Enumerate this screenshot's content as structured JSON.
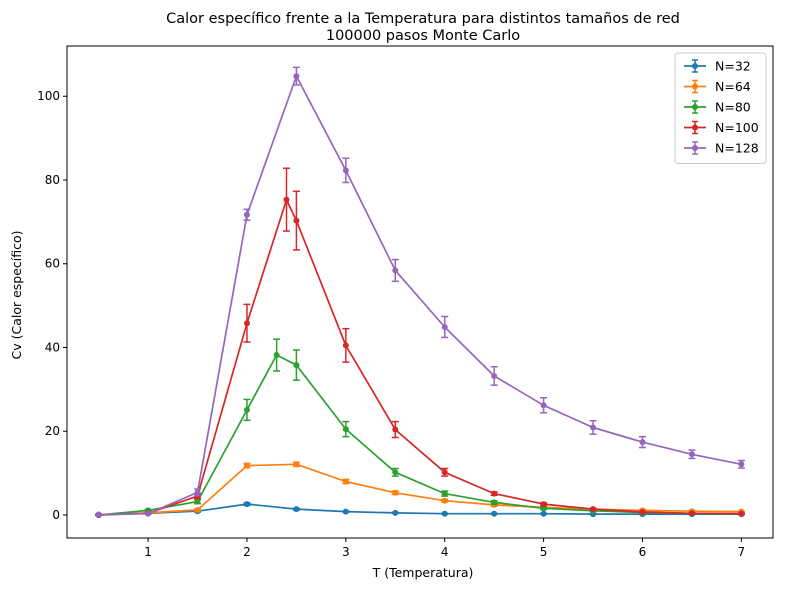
{
  "chart_data": {
    "type": "line",
    "title": "Calor específico frente a la Temperatura para distintos tamaños de red",
    "subtitle": "100000 pasos Monte Carlo",
    "xlabel": "T (Temperatura)",
    "ylabel": "Cv (Calor específico)",
    "xlim": [
      0.18,
      7.32
    ],
    "ylim": [
      -5.5,
      112
    ],
    "xticks": [
      1,
      2,
      3,
      4,
      5,
      6,
      7
    ],
    "yticks": [
      0,
      20,
      40,
      60,
      80,
      100
    ],
    "grid": false,
    "legend_position": "top-right",
    "series": [
      {
        "name": "N=32",
        "color": "#1f77b4",
        "x": [
          0.5,
          1.0,
          1.5,
          2.0,
          2.5,
          3.0,
          3.5,
          4.0,
          4.5,
          5.0,
          5.5,
          6.0,
          6.5,
          7.0
        ],
        "y": [
          0.1,
          0.4,
          0.9,
          2.6,
          1.4,
          0.8,
          0.5,
          0.3,
          0.3,
          0.3,
          0.2,
          0.2,
          0.2,
          0.2
        ],
        "err": [
          0.1,
          0.1,
          0.2,
          0.3,
          0.2,
          0.1,
          0.1,
          0.1,
          0.1,
          0.1,
          0.1,
          0.1,
          0.1,
          0.1
        ]
      },
      {
        "name": "N=64",
        "color": "#ff7f0e",
        "x": [
          0.5,
          1.0,
          1.5,
          2.0,
          2.5,
          3.0,
          3.5,
          4.0,
          4.5,
          5.0,
          5.5,
          6.0,
          6.5,
          7.0
        ],
        "y": [
          0.0,
          0.5,
          1.2,
          11.8,
          12.1,
          8.0,
          5.3,
          3.4,
          2.4,
          1.8,
          1.4,
          1.1,
          0.9,
          0.8
        ],
        "err": [
          0.1,
          0.1,
          0.2,
          0.5,
          0.5,
          0.5,
          0.4,
          0.3,
          0.3,
          0.2,
          0.2,
          0.2,
          0.1,
          0.1
        ]
      },
      {
        "name": "N=80",
        "color": "#2ca02c",
        "x": [
          0.5,
          1.0,
          1.5,
          2.0,
          2.3,
          2.5,
          3.0,
          3.5,
          4.0,
          4.5,
          5.0,
          5.5,
          6.0,
          6.5,
          7.0
        ],
        "y": [
          0.0,
          1.1,
          3.2,
          25.1,
          38.2,
          35.8,
          20.5,
          10.2,
          5.1,
          3.0,
          1.6,
          1.0,
          0.6,
          0.4,
          0.3
        ],
        "err": [
          0.1,
          0.2,
          0.5,
          2.5,
          3.8,
          3.6,
          1.8,
          0.9,
          0.6,
          0.4,
          0.3,
          0.2,
          0.1,
          0.1,
          0.1
        ]
      },
      {
        "name": "N=100",
        "color": "#d62728",
        "x": [
          0.5,
          1.0,
          1.5,
          2.0,
          2.4,
          2.5,
          3.0,
          3.5,
          4.0,
          4.5,
          5.0,
          5.5,
          6.0,
          6.5,
          7.0
        ],
        "y": [
          0.0,
          0.4,
          4.5,
          45.8,
          75.3,
          70.3,
          40.5,
          20.4,
          10.2,
          5.1,
          2.6,
          1.4,
          0.7,
          0.4,
          0.3
        ],
        "err": [
          0.1,
          0.1,
          0.6,
          4.5,
          7.5,
          7.0,
          4.0,
          1.9,
          0.9,
          0.4,
          0.3,
          0.2,
          0.1,
          0.1,
          0.1
        ]
      },
      {
        "name": "N=128",
        "color": "#9467bd",
        "x": [
          0.5,
          1.0,
          1.5,
          2.0,
          2.5,
          3.0,
          3.5,
          4.0,
          4.5,
          5.0,
          5.5,
          6.0,
          6.5,
          7.0
        ],
        "y": [
          0.1,
          0.3,
          5.4,
          71.7,
          104.8,
          82.3,
          58.4,
          44.9,
          33.2,
          26.2,
          20.9,
          17.4,
          14.5,
          12.1
        ],
        "err": [
          0.1,
          0.1,
          0.8,
          1.3,
          2.1,
          2.9,
          2.6,
          2.5,
          2.2,
          1.8,
          1.6,
          1.3,
          1.0,
          0.9
        ]
      }
    ]
  }
}
